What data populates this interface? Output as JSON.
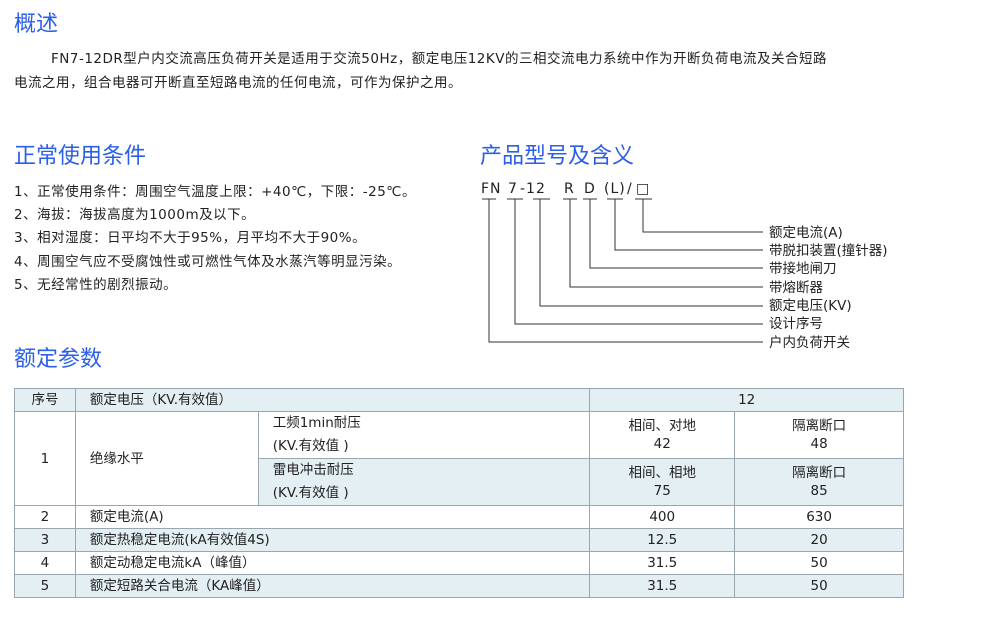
{
  "overview": {
    "title": "概述",
    "line1": "FN7-12DR型户内交流高压负荷开关是适用于交流50Hz，额定电压12KV的三相交流电力系统中作为开断负荷电流及关合短路",
    "line2": "电流之用，组合电器可开断直至短路电流的任何电流，可作为保护之用。"
  },
  "conditions": {
    "title": "正常使用条件",
    "items": [
      "1、正常使用条件：周围空气温度上限：+40℃，下限：-25℃。",
      "2、海拔：海拔高度为1000m及以下。",
      "3、相对湿度：日平均不大于95%，月平均不大于90%。",
      "4、周围空气应不受腐蚀性或可燃性气体及水蒸汽等明显污染。",
      "5、无经常性的剧烈振动。"
    ]
  },
  "model": {
    "title": "产品型号及含义",
    "code": [
      "FN",
      "7",
      "-12",
      "R",
      "D",
      "(L)",
      "/",
      "□"
    ],
    "labels": [
      "额定电流(A)",
      "带脱扣装置(撞针器)",
      "带接地闸刀",
      "带熔断器",
      "额定电压(KV)",
      "设计序号",
      "户内负荷开关"
    ]
  },
  "params": {
    "title": "额定参数",
    "header": {
      "no": "序号",
      "name": "额定电压（KV.有效值）",
      "value": "12"
    },
    "insulation": {
      "no": "1",
      "name": "绝缘水平",
      "power_freq": {
        "l1": "工频1min耐压",
        "l2": "(KV.有效值 )",
        "a_label": "相间、对地",
        "a": "42",
        "b_label": "隔离断口",
        "b": "48"
      },
      "lightning": {
        "l1": "雷电冲击耐压",
        "l2": "(KV.有效值 )",
        "a_label": "相间、相地",
        "a": "75",
        "b_label": "隔离断口",
        "b": "85"
      }
    },
    "rows": [
      {
        "no": "2",
        "name": "额定电流(A)",
        "a": "400",
        "b": "630"
      },
      {
        "no": "3",
        "name": "额定热稳定电流(kA有效值4S)",
        "a": "12.5",
        "b": "20"
      },
      {
        "no": "4",
        "name": "额定动稳定电流kA（峰值）",
        "a": "31.5",
        "b": "50"
      },
      {
        "no": "5",
        "name": "额定短路关合电流（KA峰值）",
        "a": "31.5",
        "b": "50"
      }
    ]
  },
  "colors": {
    "heading": "#2a5fe8",
    "row_shade": "#e3eff3"
  }
}
